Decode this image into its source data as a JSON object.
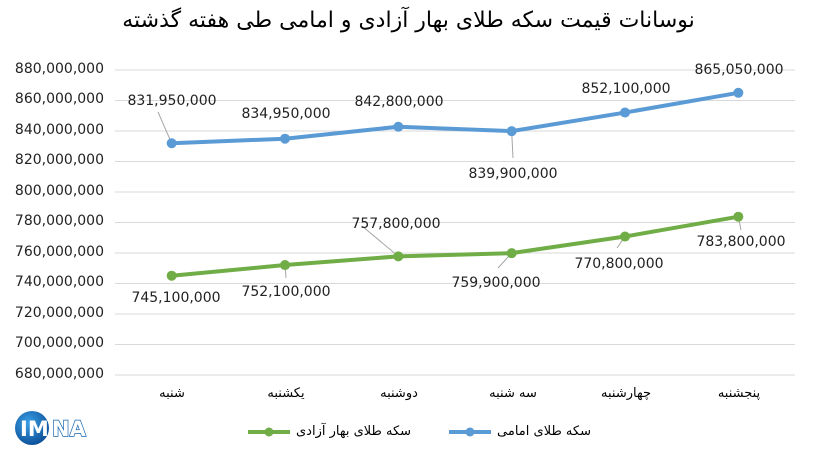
{
  "chart_data": {
    "type": "line",
    "title": "نوسانات قیمت سکه طلای بهار آزادی و امامی طی هفته گذشته",
    "xlabel": "",
    "ylabel": "",
    "ylim": [
      680000000,
      880000000
    ],
    "y_ticks": [
      "880,000,000",
      "860,000,000",
      "840,000,000",
      "820,000,000",
      "800,000,000",
      "780,000,000",
      "760,000,000",
      "740,000,000",
      "720,000,000",
      "700,000,000",
      "680,000,000"
    ],
    "categories": [
      "شنبه",
      "یکشنبه",
      "دوشنبه",
      "سه شنبه",
      "چهارشنبه",
      "پنجشنبه"
    ],
    "grid": true,
    "legend_position": "bottom",
    "series": [
      {
        "name": "سکه طلای امامی",
        "color": "#5B9BD5",
        "values": [
          831950000,
          834950000,
          842800000,
          839900000,
          852100000,
          865050000
        ],
        "labels": [
          "831,950,000",
          "834,950,000",
          "842,800,000",
          "839,900,000",
          "852,100,000",
          "865,050,000"
        ]
      },
      {
        "name": "سکه طلای بهار آزادی",
        "color": "#70AD47",
        "values": [
          745100000,
          752100000,
          757800000,
          759900000,
          770800000,
          783800000
        ],
        "labels": [
          "745,100,000",
          "752,100,000",
          "757,800,000",
          "759,900,000",
          "770,800,000",
          "783,800,000"
        ]
      }
    ]
  },
  "logo": {
    "text": "IMNA"
  }
}
